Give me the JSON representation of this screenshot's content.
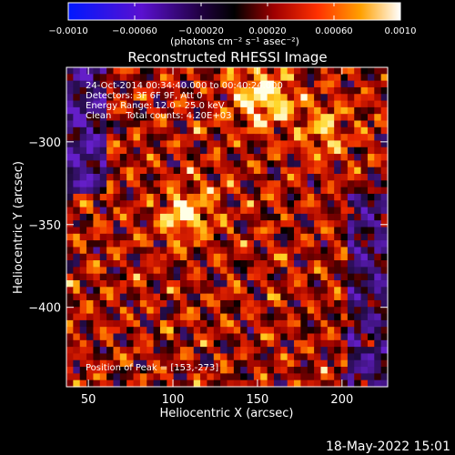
{
  "colorbar": {
    "ticks": [
      "−0.0010",
      "−0.00060",
      "−0.00020",
      "0.00020",
      "0.00060",
      "0.0010"
    ],
    "tick_values": [
      -0.001,
      -0.0006,
      -0.0002,
      0.0002,
      0.0006,
      0.001
    ],
    "range": [
      -0.001,
      0.001
    ],
    "unit_label": "(photons cm⁻² s⁻¹ asec⁻²)"
  },
  "title": "Reconstructed RHESSI Image",
  "info": {
    "line1": "24-Oct-2014 00:34:40.000 to 00:40:24.000",
    "line2": "Detectors: 3F 6F 9F, Att 0",
    "line3": "Energy Range: 12.0 - 25.0 keV",
    "line4": "Clean     Total counts: 4.20E+03"
  },
  "peak_label": "Position of Peak = [153,-273]",
  "timestamp": "18-May-2022 15:01",
  "chart_data": {
    "type": "heatmap",
    "title": "Reconstructed RHESSI Image",
    "xlabel": "Heliocentric X (arcsec)",
    "ylabel": "Heliocentric Y (arcsec)",
    "xlim": [
      37,
      227
    ],
    "ylim": [
      -448,
      -255
    ],
    "x_ticks": [
      "50",
      "100",
      "150",
      "200"
    ],
    "x_tick_values": [
      50,
      100,
      150,
      200
    ],
    "y_ticks": [
      "−300",
      "−350",
      "−400"
    ],
    "y_tick_values": [
      -300,
      -350,
      -400
    ],
    "colormap": "red-temperature (blue-purple negative, black zero, red-orange-yellow-white positive)",
    "peak_position": [
      153,
      -273
    ],
    "value_range": [
      -0.001,
      0.001
    ],
    "bright_sources": [
      {
        "x": 153,
        "y": -273,
        "level": 1.0
      },
      {
        "x": 108,
        "y": -343,
        "level": 0.8
      },
      {
        "x": 190,
        "y": -292,
        "level": 0.6
      }
    ]
  }
}
